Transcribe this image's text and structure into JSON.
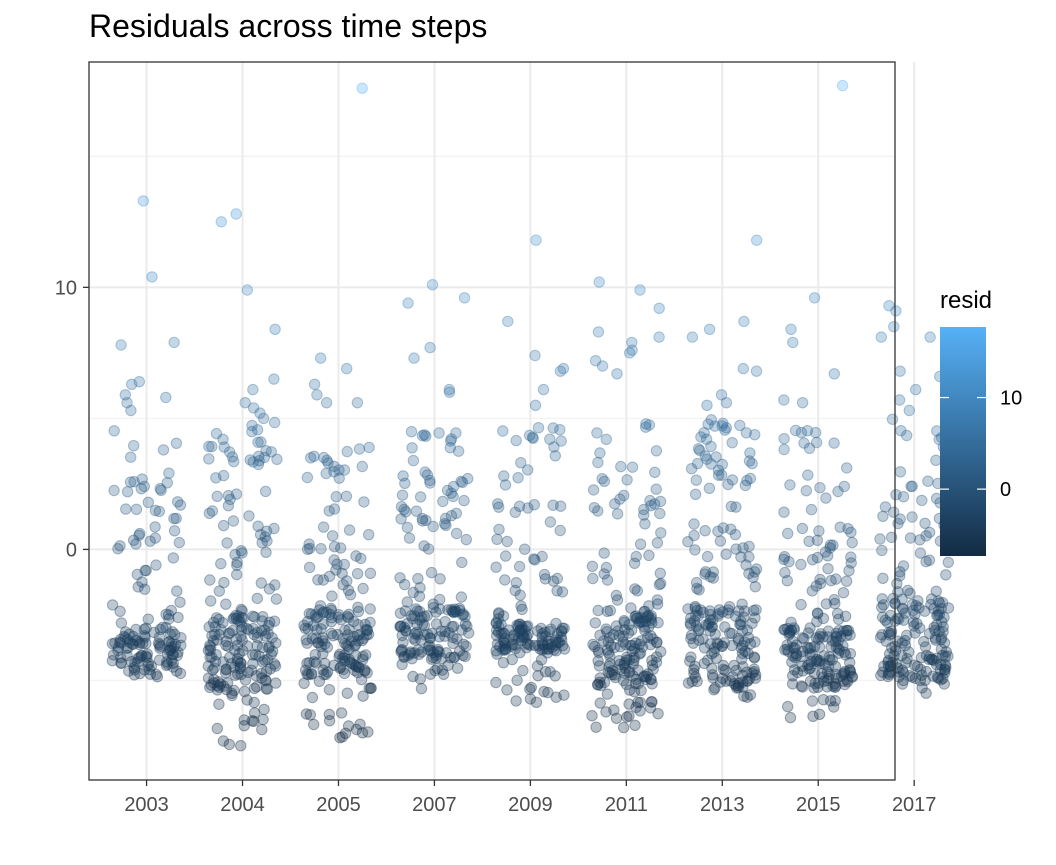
{
  "chart_data": {
    "type": "scatter",
    "title": "Residuals across time steps",
    "xlabel": "",
    "ylabel": "",
    "categories": [
      "2003",
      "2004",
      "2005",
      "2007",
      "2009",
      "2011",
      "2013",
      "2015",
      "2017"
    ],
    "ylim": [
      -8.8,
      18.6
    ],
    "y_ticks": [
      0,
      10
    ],
    "grid": true,
    "jitter": "horizontal jitter within each category",
    "point_alpha": 0.3,
    "color_scale": {
      "variable": "resid",
      "low_color": "#132B43",
      "high_color": "#56B1F7",
      "range": [
        -7.3,
        17.7
      ],
      "ticks": [
        0,
        10
      ]
    },
    "legend": {
      "title": "resid",
      "position": "right"
    },
    "outliers": [
      {
        "category": "2003",
        "values": [
          13.3,
          10.4,
          7.9,
          7.8,
          6.4,
          6.3,
          5.9,
          5.8,
          5.6,
          5.3
        ]
      },
      {
        "category": "2004",
        "values": [
          12.8,
          12.5,
          9.9,
          8.4,
          6.5,
          6.1,
          5.6,
          5.4,
          5.2,
          5.0
        ]
      },
      {
        "category": "2005",
        "values": [
          17.6,
          7.3,
          6.9,
          6.3,
          5.9,
          5.6,
          5.6
        ]
      },
      {
        "category": "2007",
        "values": [
          10.1,
          9.6,
          9.4,
          7.7,
          7.3,
          6.1,
          6.0
        ]
      },
      {
        "category": "2009",
        "values": [
          11.8,
          8.7,
          7.4,
          6.9,
          6.8,
          6.1,
          5.5
        ]
      },
      {
        "category": "2011",
        "values": [
          10.2,
          9.9,
          9.2,
          8.3,
          8.1,
          7.9,
          7.6,
          7.5,
          7.2,
          7.0,
          6.7
        ]
      },
      {
        "category": "2013",
        "values": [
          11.8,
          8.7,
          8.4,
          8.1,
          6.9,
          6.8,
          5.9,
          5.6,
          5.5
        ]
      },
      {
        "category": "2015",
        "values": [
          17.7,
          9.6,
          8.4,
          7.9,
          6.7,
          5.7,
          5.6
        ]
      },
      {
        "category": "2017",
        "values": [
          9.3,
          9.1,
          8.5,
          8.1,
          8.1,
          6.8,
          6.6,
          6.1,
          5.7,
          5.3
        ]
      }
    ],
    "bulk_distribution": [
      {
        "category": "2003",
        "range": [
          -5.0,
          4.8
        ],
        "dense_band": [
          -4.8,
          -3.0
        ],
        "count": 150
      },
      {
        "category": "2004",
        "range": [
          -7.5,
          5.0
        ],
        "dense_band": [
          -5.4,
          -2.5
        ],
        "count": 210
      },
      {
        "category": "2005",
        "range": [
          -7.2,
          4.3
        ],
        "dense_band": [
          -4.8,
          -2.2
        ],
        "count": 190
      },
      {
        "category": "2007",
        "range": [
          -5.4,
          4.5
        ],
        "dense_band": [
          -4.2,
          -2.2
        ],
        "count": 175
      },
      {
        "category": "2009",
        "range": [
          -5.9,
          5.0
        ],
        "dense_band": [
          -4.0,
          -2.8
        ],
        "count": 170
      },
      {
        "category": "2011",
        "range": [
          -6.8,
          5.0
        ],
        "dense_band": [
          -5.2,
          -2.3
        ],
        "count": 200
      },
      {
        "category": "2013",
        "range": [
          -5.8,
          5.0
        ],
        "dense_band": [
          -5.3,
          -2.2
        ],
        "count": 200
      },
      {
        "category": "2015",
        "range": [
          -6.5,
          4.8
        ],
        "dense_band": [
          -5.3,
          -3.0
        ],
        "count": 200
      },
      {
        "category": "2017",
        "range": [
          -5.5,
          5.0
        ],
        "dense_band": [
          -5.0,
          -1.8
        ],
        "count": 190
      }
    ]
  }
}
